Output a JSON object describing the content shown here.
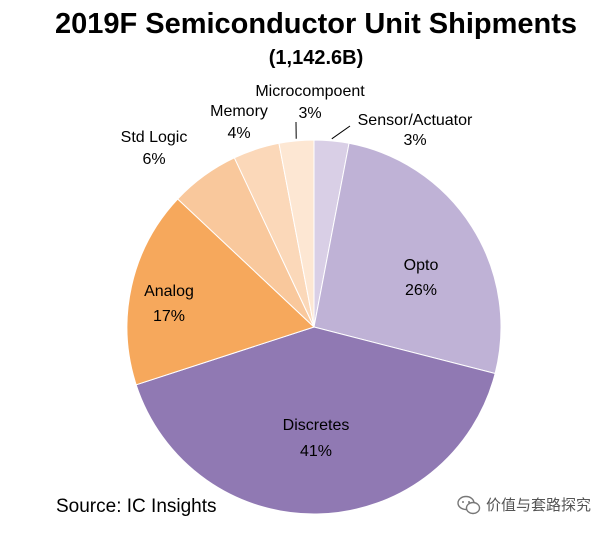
{
  "chart_data": {
    "type": "pie",
    "title": "2019F Semiconductor Unit Shipments",
    "subtitle": "(1,142.6B)",
    "source": "Source:  IC Insights",
    "slices": [
      {
        "label": "Sensor/Actuator",
        "pct_label": "3%",
        "value": 3,
        "color": "#d9cfe6"
      },
      {
        "label": "Opto",
        "pct_label": "26%",
        "value": 26,
        "color": "#bfb2d6"
      },
      {
        "label": "Discretes",
        "pct_label": "41%",
        "value": 41,
        "color": "#9079b3"
      },
      {
        "label": "Analog",
        "pct_label": "17%",
        "value": 17,
        "color": "#f6a85c"
      },
      {
        "label": "Std Logic",
        "pct_label": "6%",
        "value": 6,
        "color": "#f9c89c"
      },
      {
        "label": "Memory",
        "pct_label": "4%",
        "value": 4,
        "color": "#fbd8b9"
      },
      {
        "label": "Microcompoent",
        "pct_label": "3%",
        "value": 3,
        "color": "#fde7d3"
      }
    ]
  },
  "watermark": "价值与套路探究",
  "watermark_icon": "wechat-icon"
}
